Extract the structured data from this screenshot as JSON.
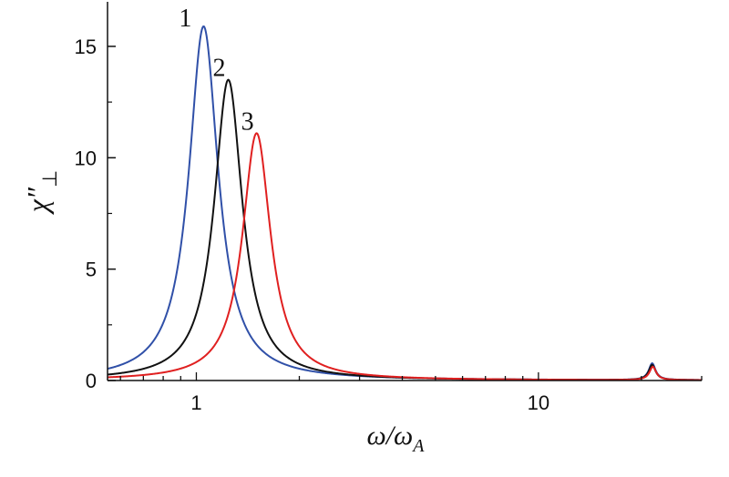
{
  "chart_data": {
    "type": "line",
    "title": "",
    "xlabel": {
      "main": "ω/ω",
      "sub": "A"
    },
    "ylabel": {
      "main": "χ″",
      "sub": "⊥"
    },
    "x_scale": "log",
    "xlim": [
      0.55,
      30
    ],
    "ylim": [
      0,
      17
    ],
    "x_ticks": [
      {
        "value": 1,
        "label": "1"
      },
      {
        "value": 10,
        "label": "10"
      }
    ],
    "y_ticks": [
      {
        "value": 0,
        "label": "0"
      },
      {
        "value": 5,
        "label": "5"
      },
      {
        "value": 10,
        "label": "10"
      },
      {
        "value": 15,
        "label": "15"
      }
    ],
    "grid": false,
    "series": [
      {
        "label": "1",
        "color": "#3050a8",
        "peak_x": 1.05,
        "peak_y": 15.9,
        "half_width": 0.052,
        "second_peak_x": 21.5,
        "second_peak_y": 0.75,
        "second_half_width": 0.012
      },
      {
        "label": "2",
        "color": "#111111",
        "peak_x": 1.24,
        "peak_y": 13.5,
        "half_width": 0.05,
        "second_peak_x": 21.5,
        "second_peak_y": 0.68,
        "second_half_width": 0.012
      },
      {
        "label": "3",
        "color": "#e02020",
        "peak_x": 1.5,
        "peak_y": 11.1,
        "half_width": 0.05,
        "second_peak_x": 21.6,
        "second_peak_y": 0.6,
        "second_half_width": 0.012
      }
    ]
  }
}
